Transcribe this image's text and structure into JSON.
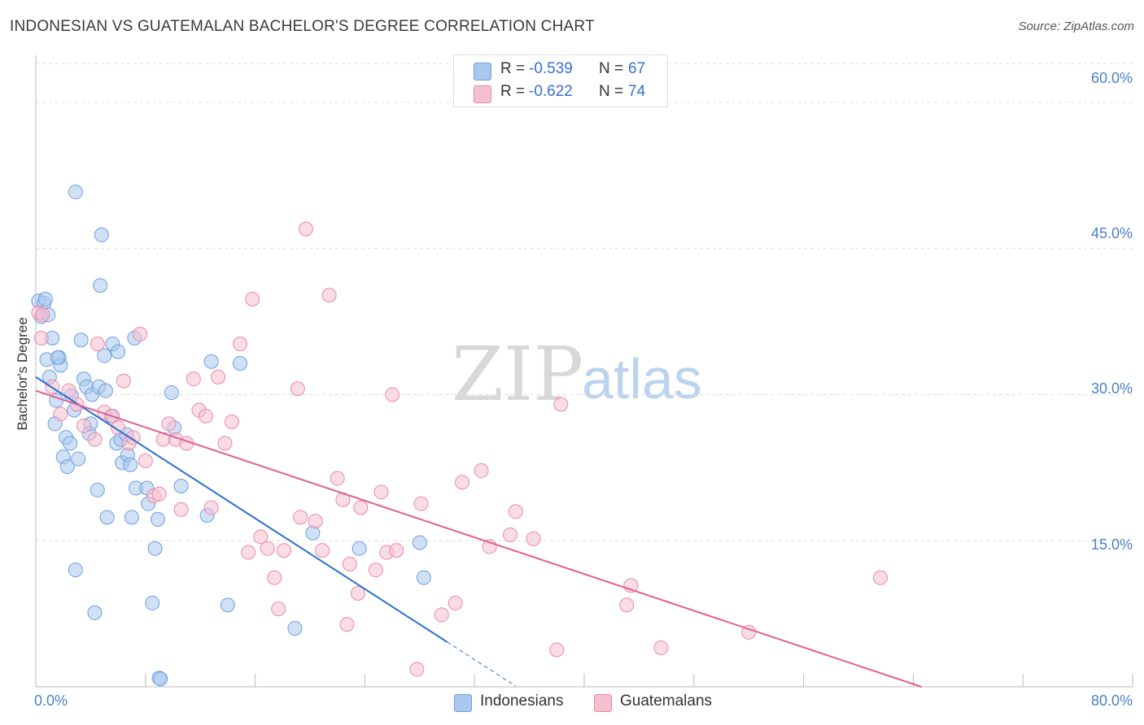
{
  "title": "INDONESIAN VS GUATEMALAN BACHELOR'S DEGREE CORRELATION CHART",
  "source": "Source: ZipAtlas.com",
  "watermark": {
    "zip": "ZIP",
    "atlas": "atlas"
  },
  "colors": {
    "blue_fill": "#aac8ef",
    "blue_stroke": "#6f9ee0",
    "blue_line": "#2d6fd1",
    "pink_fill": "#f5bfd0",
    "pink_stroke": "#e98aa8",
    "pink_line": "#e0608f",
    "tick_text": "#4a7fcf",
    "grid": "#dddddd"
  },
  "stats_legend": [
    {
      "r_label": "R =",
      "r_value": "-0.539",
      "n_label": "N =",
      "n_value": "67"
    },
    {
      "r_label": "R =",
      "r_value": "-0.622",
      "n_label": "N =",
      "n_value": "74"
    }
  ],
  "chart_data": {
    "type": "scatter",
    "title": "INDONESIAN VS GUATEMALAN BACHELOR'S DEGREE CORRELATION CHART",
    "xlabel": "",
    "ylabel": "Bachelor's Degree",
    "xlim": [
      0,
      80
    ],
    "ylim": [
      0,
      64
    ],
    "x_tick_labels": [
      "0.0%",
      "80.0%"
    ],
    "y_ticks": [
      15,
      30,
      45,
      60
    ],
    "y_tick_labels": [
      "15.0%",
      "30.0%",
      "45.0%",
      "60.0%"
    ],
    "grid": true,
    "legend": [
      "Indonesians",
      "Guatemalans"
    ],
    "series": [
      {
        "name": "Indonesians",
        "r": -0.539,
        "n": 67,
        "trend": {
          "x0": 0,
          "y0": 31.8,
          "x1": 30,
          "y1": 4.6,
          "dash_to_x": 35
        },
        "points": [
          [
            0.2,
            39.6
          ],
          [
            0.4,
            38.0
          ],
          [
            0.6,
            39.4
          ],
          [
            0.8,
            33.6
          ],
          [
            1.0,
            31.8
          ],
          [
            1.2,
            35.8
          ],
          [
            1.4,
            27.0
          ],
          [
            1.5,
            29.4
          ],
          [
            1.7,
            33.8
          ],
          [
            1.8,
            33.0
          ],
          [
            2.0,
            23.6
          ],
          [
            2.2,
            25.6
          ],
          [
            2.3,
            22.6
          ],
          [
            2.5,
            25.0
          ],
          [
            2.6,
            29.9
          ],
          [
            2.8,
            28.4
          ],
          [
            2.9,
            12.0
          ],
          [
            3.1,
            23.4
          ],
          [
            3.3,
            35.6
          ],
          [
            3.5,
            31.6
          ],
          [
            3.7,
            30.8
          ],
          [
            3.9,
            26.0
          ],
          [
            4.0,
            27.0
          ],
          [
            4.1,
            30.0
          ],
          [
            4.3,
            7.6
          ],
          [
            4.5,
            20.2
          ],
          [
            4.6,
            30.8
          ],
          [
            4.7,
            41.2
          ],
          [
            4.8,
            46.4
          ],
          [
            5.0,
            34.0
          ],
          [
            5.1,
            30.4
          ],
          [
            5.2,
            17.4
          ],
          [
            5.5,
            27.8
          ],
          [
            5.6,
            35.2
          ],
          [
            5.9,
            25.0
          ],
          [
            6.0,
            34.4
          ],
          [
            6.2,
            25.4
          ],
          [
            6.3,
            23.0
          ],
          [
            6.6,
            25.9
          ],
          [
            6.7,
            23.8
          ],
          [
            6.9,
            22.8
          ],
          [
            7.0,
            17.4
          ],
          [
            7.2,
            35.8
          ],
          [
            7.3,
            20.4
          ],
          [
            8.1,
            20.4
          ],
          [
            8.2,
            18.8
          ],
          [
            8.5,
            8.6
          ],
          [
            8.7,
            14.2
          ],
          [
            8.9,
            17.2
          ],
          [
            9.0,
            0.9
          ],
          [
            9.1,
            0.8
          ],
          [
            9.9,
            30.2
          ],
          [
            10.1,
            26.6
          ],
          [
            10.6,
            20.6
          ],
          [
            12.5,
            17.6
          ],
          [
            12.8,
            33.4
          ],
          [
            14.0,
            8.4
          ],
          [
            14.9,
            33.2
          ],
          [
            18.9,
            6.0
          ],
          [
            20.2,
            15.8
          ],
          [
            23.6,
            14.2
          ],
          [
            28.0,
            14.8
          ],
          [
            28.3,
            11.2
          ],
          [
            2.9,
            50.8
          ],
          [
            0.7,
            39.8
          ],
          [
            0.9,
            38.2
          ],
          [
            1.6,
            33.8
          ]
        ]
      },
      {
        "name": "Guatemalans",
        "r": -0.622,
        "n": 74,
        "trend": {
          "x0": 0,
          "y0": 30.4,
          "x1": 64.6,
          "y1": 0
        },
        "points": [
          [
            0.2,
            38.4
          ],
          [
            0.4,
            35.8
          ],
          [
            0.5,
            38.2
          ],
          [
            1.2,
            30.8
          ],
          [
            1.8,
            28.0
          ],
          [
            2.4,
            30.4
          ],
          [
            3.0,
            29.0
          ],
          [
            3.5,
            26.8
          ],
          [
            4.3,
            25.4
          ],
          [
            4.5,
            35.2
          ],
          [
            5.0,
            28.2
          ],
          [
            5.6,
            27.8
          ],
          [
            6.0,
            26.6
          ],
          [
            6.4,
            31.4
          ],
          [
            6.8,
            25.0
          ],
          [
            7.1,
            25.6
          ],
          [
            7.6,
            36.2
          ],
          [
            8.0,
            23.2
          ],
          [
            8.6,
            19.6
          ],
          [
            9.0,
            19.8
          ],
          [
            9.3,
            25.4
          ],
          [
            9.7,
            27.0
          ],
          [
            10.2,
            25.4
          ],
          [
            10.6,
            18.2
          ],
          [
            11.0,
            25.0
          ],
          [
            11.5,
            31.6
          ],
          [
            11.9,
            28.4
          ],
          [
            12.4,
            27.8
          ],
          [
            12.8,
            18.4
          ],
          [
            13.3,
            31.8
          ],
          [
            13.8,
            25.0
          ],
          [
            14.3,
            27.2
          ],
          [
            14.9,
            35.2
          ],
          [
            15.5,
            13.8
          ],
          [
            15.8,
            39.8
          ],
          [
            16.4,
            15.4
          ],
          [
            16.9,
            14.2
          ],
          [
            17.4,
            11.2
          ],
          [
            17.7,
            8.0
          ],
          [
            18.1,
            14.0
          ],
          [
            19.1,
            30.6
          ],
          [
            19.3,
            17.4
          ],
          [
            19.7,
            47.0
          ],
          [
            20.4,
            17.0
          ],
          [
            20.9,
            14.0
          ],
          [
            21.4,
            40.2
          ],
          [
            22.0,
            21.4
          ],
          [
            22.4,
            19.2
          ],
          [
            22.7,
            6.4
          ],
          [
            22.9,
            12.6
          ],
          [
            23.5,
            9.6
          ],
          [
            23.7,
            18.4
          ],
          [
            24.8,
            12.0
          ],
          [
            25.2,
            20.0
          ],
          [
            25.6,
            13.8
          ],
          [
            26.0,
            30.0
          ],
          [
            26.3,
            14.0
          ],
          [
            27.8,
            1.8
          ],
          [
            28.1,
            18.8
          ],
          [
            29.6,
            7.4
          ],
          [
            30.6,
            8.6
          ],
          [
            31.1,
            21.0
          ],
          [
            32.5,
            22.2
          ],
          [
            33.1,
            14.4
          ],
          [
            34.6,
            15.6
          ],
          [
            35.0,
            18.0
          ],
          [
            36.3,
            15.2
          ],
          [
            38.0,
            3.8
          ],
          [
            38.3,
            29.0
          ],
          [
            43.1,
            8.4
          ],
          [
            43.4,
            10.4
          ],
          [
            45.6,
            4.0
          ],
          [
            52.0,
            5.6
          ],
          [
            61.6,
            11.2
          ]
        ]
      }
    ]
  }
}
